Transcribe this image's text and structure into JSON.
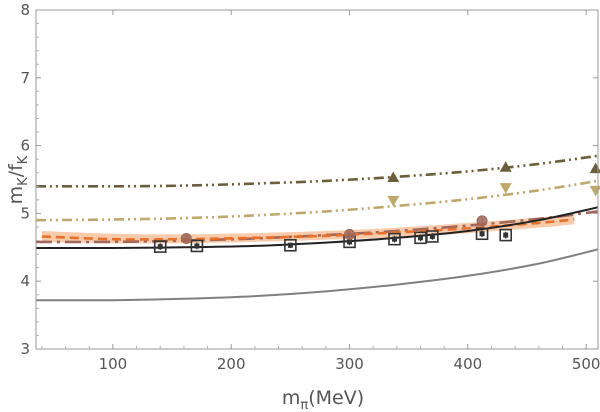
{
  "chart_data": {
    "type": "line",
    "title": "",
    "xlabel": "m",
    "xlabel_sub": "π",
    "xlabel_unit": "(MeV)",
    "ylabel": "m",
    "ylabel_sub1": "K",
    "ylabel_mid": "/f",
    "ylabel_sub2": "K",
    "xlim": [
      35,
      510
    ],
    "ylim": [
      3,
      8
    ],
    "xticks": [
      100,
      200,
      300,
      400,
      500
    ],
    "yticks": [
      3,
      4,
      5,
      6,
      7,
      8
    ],
    "grid": false,
    "band": {
      "name": "orange uncertainty band",
      "color": "#f5b98f",
      "x": [
        40,
        100,
        160,
        220,
        280,
        340,
        400,
        460,
        490
      ],
      "lower": [
        4.58,
        4.56,
        4.56,
        4.58,
        4.61,
        4.65,
        4.71,
        4.79,
        4.84
      ],
      "upper": [
        4.74,
        4.7,
        4.69,
        4.71,
        4.74,
        4.79,
        4.86,
        4.94,
        4.99
      ]
    },
    "series": [
      {
        "name": "dark olive dash-dot-dot",
        "color": "#6b5f3a",
        "style": "dashdotdot",
        "x": [
          35,
          100,
          160,
          220,
          280,
          340,
          400,
          460,
          510
        ],
        "y": [
          5.4,
          5.4,
          5.41,
          5.44,
          5.48,
          5.54,
          5.62,
          5.73,
          5.85
        ]
      },
      {
        "name": "tan dash-dot-dot",
        "color": "#c0a86a",
        "style": "dashdotdot",
        "x": [
          35,
          100,
          160,
          220,
          280,
          340,
          400,
          460,
          510
        ],
        "y": [
          4.9,
          4.91,
          4.93,
          4.97,
          5.03,
          5.11,
          5.21,
          5.34,
          5.48
        ]
      },
      {
        "name": "brown long dash-dot",
        "color": "#a0675a",
        "style": "longdashdot",
        "x": [
          35,
          100,
          160,
          220,
          280,
          340,
          400,
          460,
          510
        ],
        "y": [
          4.58,
          4.58,
          4.6,
          4.63,
          4.68,
          4.74,
          4.82,
          4.92,
          5.03
        ]
      },
      {
        "name": "orange dashed",
        "color": "#e8702a",
        "style": "dashed",
        "x": [
          40,
          100,
          160,
          220,
          280,
          340,
          400,
          460,
          490
        ],
        "y": [
          4.66,
          4.62,
          4.62,
          4.64,
          4.67,
          4.72,
          4.78,
          4.86,
          4.91
        ]
      },
      {
        "name": "black solid",
        "color": "#222222",
        "style": "solid",
        "x": [
          35,
          100,
          160,
          220,
          280,
          340,
          400,
          460,
          510
        ],
        "y": [
          4.49,
          4.49,
          4.5,
          4.52,
          4.57,
          4.64,
          4.74,
          4.9,
          5.09
        ]
      },
      {
        "name": "gray solid",
        "color": "#808080",
        "style": "solid",
        "x": [
          35,
          100,
          160,
          220,
          280,
          340,
          400,
          460,
          510
        ],
        "y": [
          3.72,
          3.72,
          3.74,
          3.78,
          3.85,
          3.95,
          4.08,
          4.26,
          4.47
        ]
      }
    ],
    "markers": [
      {
        "name": "boxed squares",
        "shape": "boxed-square",
        "color": "#333333",
        "x": [
          140,
          171,
          250,
          300,
          338,
          360,
          370,
          412,
          432
        ],
        "y": [
          4.51,
          4.52,
          4.53,
          4.58,
          4.62,
          4.64,
          4.66,
          4.7,
          4.68
        ],
        "err": [
          0.05,
          0.05,
          0.04,
          0.05,
          0.05,
          0.05,
          0.05,
          0.05,
          0.05
        ]
      },
      {
        "name": "brown circles",
        "shape": "circle",
        "color": "#a0675a",
        "x": [
          162,
          300,
          412
        ],
        "y": [
          4.63,
          4.69,
          4.89
        ],
        "err": [
          0.06,
          0.06,
          0.05
        ]
      },
      {
        "name": "olive triangles up",
        "shape": "triangle-up",
        "color": "#6b5f3a",
        "x": [
          337,
          432,
          508
        ],
        "y": [
          5.53,
          5.68,
          5.66
        ],
        "err": [
          0.06,
          0.06,
          0.07
        ]
      },
      {
        "name": "tan triangles down",
        "shape": "triangle-down",
        "color": "#c0a86a",
        "x": [
          337,
          432,
          508
        ],
        "y": [
          5.19,
          5.38,
          5.34
        ],
        "err": [
          0.06,
          0.06,
          0.07
        ]
      }
    ]
  }
}
